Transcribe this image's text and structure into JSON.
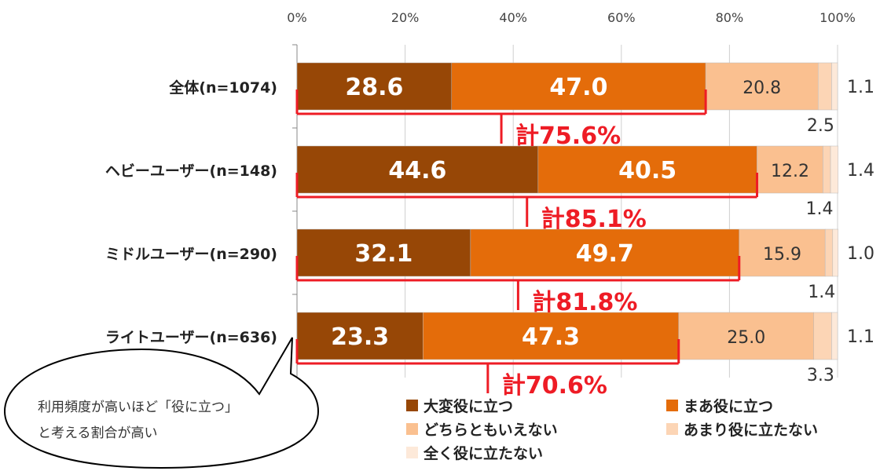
{
  "chart_data": {
    "type": "bar",
    "orientation": "horizontal",
    "stacked": true,
    "x_ticks": [
      "0%",
      "20%",
      "40%",
      "60%",
      "80%",
      "100%"
    ],
    "xlim": [
      0,
      100
    ],
    "categories": [
      "全体(n=1074)",
      "ヘビーユーザー(n=148)",
      "ミドルユーザー(n=290)",
      "ライトユーザー(n=636)"
    ],
    "series": [
      {
        "name": "大変役に立つ",
        "color": "#974706",
        "values": [
          28.6,
          44.6,
          32.1,
          23.3
        ]
      },
      {
        "name": "まあ役に立つ",
        "color": "#e46c0a",
        "values": [
          47.0,
          40.5,
          49.7,
          47.3
        ]
      },
      {
        "name": "どちらともいえない",
        "color": "#fac090",
        "values": [
          20.8,
          12.2,
          15.9,
          25.0
        ]
      },
      {
        "name": "あまり役に立たない",
        "color": "#fcd5b5",
        "values": [
          2.5,
          1.4,
          1.4,
          3.3
        ]
      },
      {
        "name": "全く役に立たない",
        "color": "#fde9d9",
        "values": [
          1.1,
          1.4,
          1.0,
          1.1
        ]
      }
    ],
    "totals": [
      "計75.6%",
      "計85.1%",
      "計81.8%",
      "計70.6%"
    ],
    "legend_position": "bottom-right",
    "grid": true
  },
  "callout": {
    "line1": "利用頻度が高いほど「役に立つ」",
    "line2": "と考える割合が高い"
  }
}
